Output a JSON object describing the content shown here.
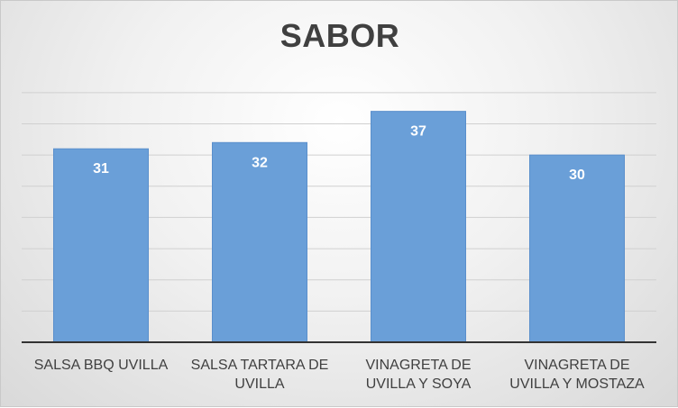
{
  "chart_data": {
    "type": "bar",
    "title": "SABOR",
    "categories": [
      "SALSA BBQ UVILLA",
      "SALSA TARTARA DE UVILLA",
      "VINAGRETA DE UVILLA Y SOYA",
      "VINAGRETA DE UVILLA Y MOSTAZA"
    ],
    "values": [
      31,
      32,
      37,
      30
    ],
    "ylim": [
      0,
      42
    ],
    "grid": true,
    "legend": "none",
    "colors": {
      "bar": "#6a9fd8",
      "bar_edge": "#5a8fcc",
      "label": "#ffffff",
      "text": "#404040",
      "grid": "#d0d0d0",
      "axis": "#333333"
    }
  }
}
